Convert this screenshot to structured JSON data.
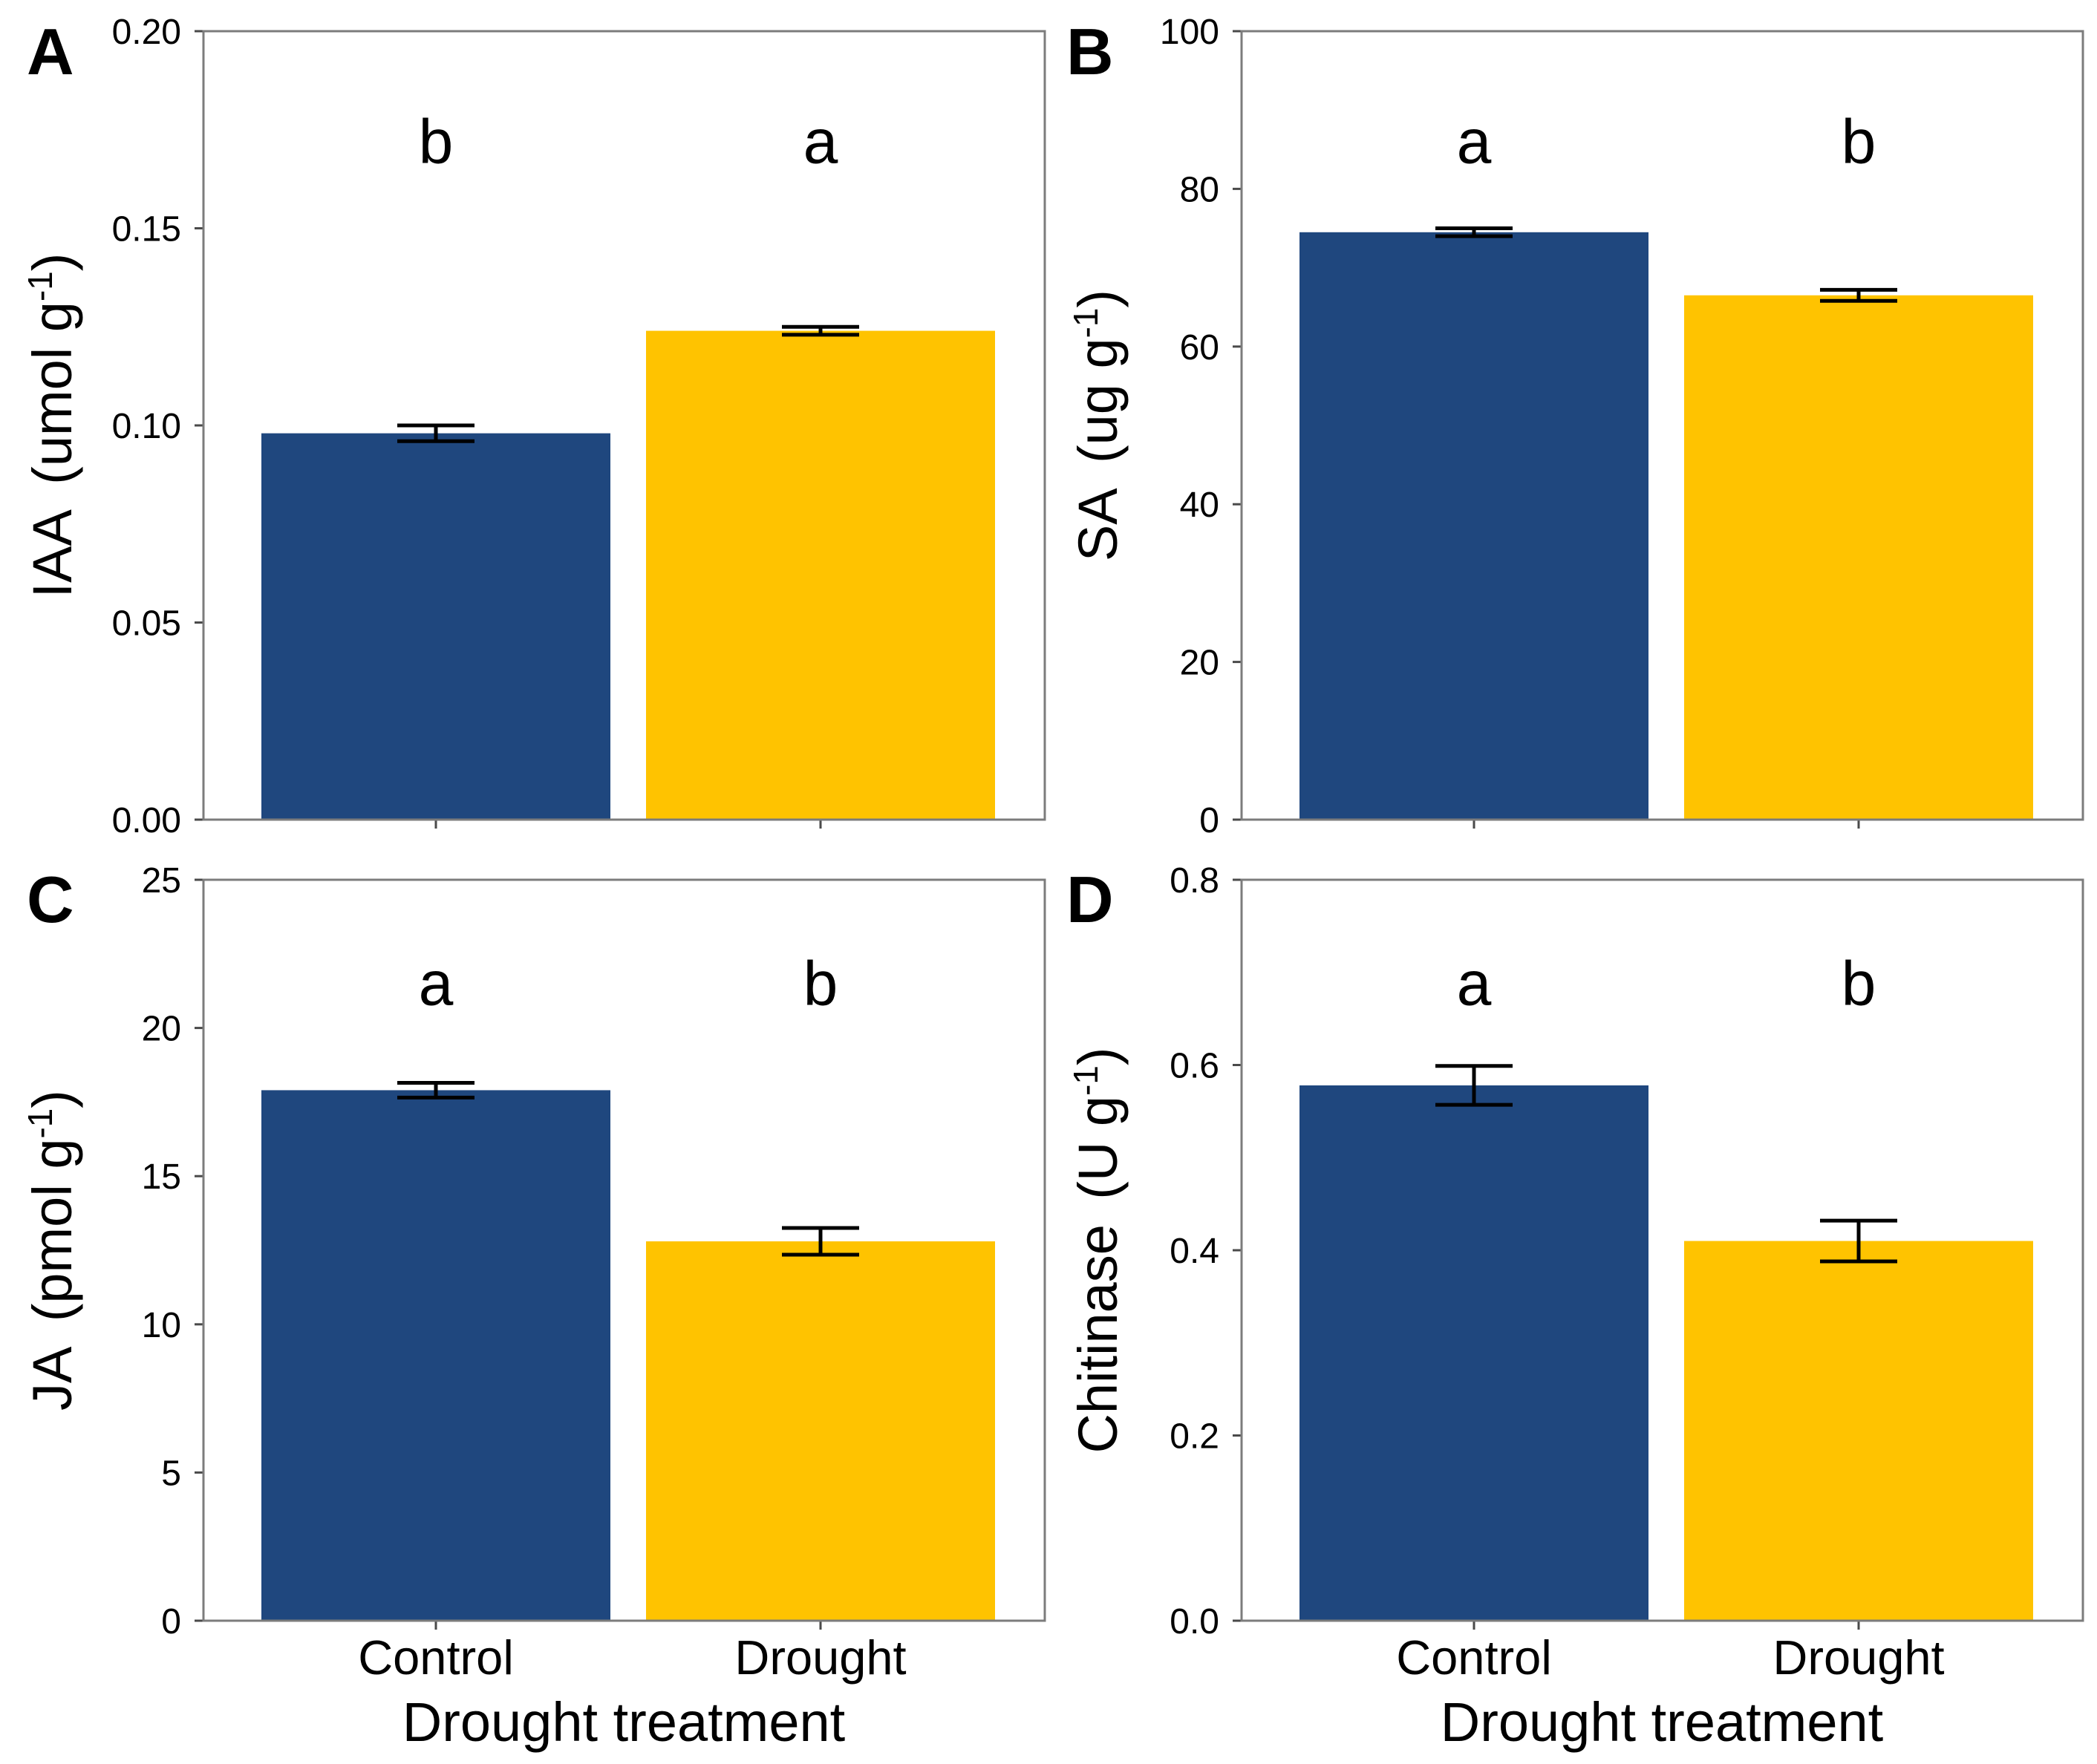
{
  "figure": {
    "x_axis_title": "Drought treatment",
    "categories": [
      "Control",
      "Drought"
    ],
    "background": "#FFFFFF",
    "frame_color": "#7C7C7C",
    "tick_color": "#4A4A4A",
    "error_bar_color": "#000000",
    "bar_colors": {
      "control": "#1F477E",
      "drought": "#FFC300"
    }
  },
  "chart_data": [
    {
      "panel": "A",
      "type": "bar",
      "ylabel": "IAA (umol g-1)",
      "ylabel_parts": {
        "name": "IAA",
        "unit_open": "(umol g",
        "exponent": "-1",
        "unit_close": ")"
      },
      "categories": [
        "Control",
        "Drought"
      ],
      "values": [
        0.098,
        0.124
      ],
      "errors": [
        0.002,
        0.001
      ],
      "sig_letters": [
        "b",
        "a"
      ],
      "ylim": [
        0,
        0.2
      ],
      "ytick_values": [
        0,
        0.05,
        0.1,
        0.15,
        0.2
      ],
      "ytick_labels": [
        "0.00",
        "0.05",
        "0.10",
        "0.15",
        "0.20"
      ],
      "bar_colors": [
        "#1F477E",
        "#FFC300"
      ],
      "show_x_tick_labels": false,
      "grid": false,
      "legend": "none"
    },
    {
      "panel": "B",
      "type": "bar",
      "ylabel": "SA (ug g-1)",
      "ylabel_parts": {
        "name": "SA",
        "unit_open": "(ug g",
        "exponent": "-1",
        "unit_close": ")"
      },
      "categories": [
        "Control",
        "Drought"
      ],
      "values": [
        74.5,
        66.5
      ],
      "errors": [
        0.5,
        0.7
      ],
      "sig_letters": [
        "a",
        "b"
      ],
      "ylim": [
        0,
        100
      ],
      "ytick_values": [
        0,
        20,
        40,
        60,
        80,
        100
      ],
      "ytick_labels": [
        "0",
        "20",
        "40",
        "60",
        "80",
        "100"
      ],
      "bar_colors": [
        "#1F477E",
        "#FFC300"
      ],
      "show_x_tick_labels": false,
      "grid": false,
      "legend": "none"
    },
    {
      "panel": "C",
      "type": "bar",
      "ylabel": "JA (pmol g-1)",
      "ylabel_parts": {
        "name": "JA",
        "unit_open": "(pmol g",
        "exponent": "-1",
        "unit_close": ")"
      },
      "categories": [
        "Control",
        "Drought"
      ],
      "values": [
        17.9,
        12.8
      ],
      "errors": [
        0.25,
        0.45
      ],
      "sig_letters": [
        "a",
        "b"
      ],
      "ylim": [
        0,
        25
      ],
      "ytick_values": [
        0,
        5,
        10,
        15,
        20,
        25
      ],
      "ytick_labels": [
        "0",
        "5",
        "10",
        "15",
        "20",
        "25"
      ],
      "bar_colors": [
        "#1F477E",
        "#FFC300"
      ],
      "show_x_tick_labels": true,
      "grid": false,
      "legend": "none"
    },
    {
      "panel": "D",
      "type": "bar",
      "ylabel": "Chitinase (U g-1)",
      "ylabel_parts": {
        "name": "Chitinase",
        "unit_open": "(U g",
        "exponent": "-1",
        "unit_close": ")"
      },
      "categories": [
        "Control",
        "Drought"
      ],
      "values": [
        0.578,
        0.41
      ],
      "errors": [
        0.021,
        0.022
      ],
      "sig_letters": [
        "a",
        "b"
      ],
      "ylim": [
        0,
        0.8
      ],
      "ytick_values": [
        0,
        0.2,
        0.4,
        0.6,
        0.8
      ],
      "ytick_labels": [
        "0.0",
        "0.2",
        "0.4",
        "0.6",
        "0.8"
      ],
      "bar_colors": [
        "#1F477E",
        "#FFC300"
      ],
      "show_x_tick_labels": true,
      "grid": false,
      "legend": "none"
    }
  ]
}
